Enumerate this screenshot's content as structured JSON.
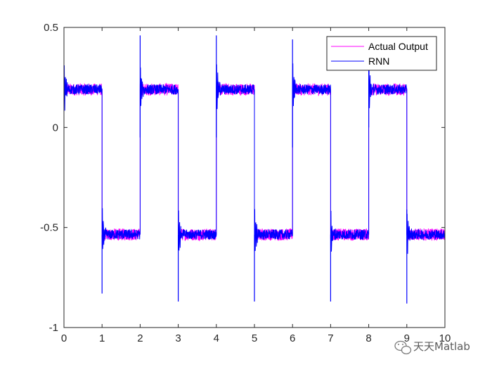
{
  "chart_data": {
    "type": "line",
    "title": "",
    "xlabel": "",
    "ylabel": "",
    "xlim": [
      0,
      10
    ],
    "ylim": [
      -1,
      0.5
    ],
    "x_ticks": [
      "0",
      "1",
      "2",
      "3",
      "4",
      "5",
      "6",
      "7",
      "8",
      "9",
      "10"
    ],
    "y_ticks": [
      "-1",
      "-0.5",
      "0",
      "0.5"
    ],
    "grid": false,
    "legend_position": "top-right",
    "square_wave": {
      "period": 2,
      "high_level": 0.19,
      "low_level": -0.535,
      "noise_amplitude_actual": 0.03,
      "noise_amplitude_rnn": 0.025
    },
    "series": [
      {
        "name": "Actual Output",
        "color": "#ff00ff",
        "x": [
          0,
          1,
          1,
          2,
          2,
          3,
          3,
          4,
          4,
          5,
          5,
          6,
          6,
          7,
          7,
          8,
          8,
          9,
          9,
          10
        ],
        "y": [
          0.19,
          0.19,
          -0.535,
          -0.535,
          0.19,
          0.19,
          -0.535,
          -0.535,
          0.19,
          0.19,
          -0.535,
          -0.535,
          0.19,
          0.19,
          -0.535,
          -0.535,
          0.19,
          0.19,
          -0.535,
          -0.535
        ]
      },
      {
        "name": "RNN",
        "color": "#0000ff",
        "x": [
          0,
          1,
          1,
          2,
          2,
          3,
          3,
          4,
          4,
          5,
          5,
          6,
          6,
          7,
          7,
          8,
          8,
          9,
          9,
          10
        ],
        "y": [
          0.19,
          0.19,
          -0.535,
          -0.535,
          0.19,
          0.19,
          -0.535,
          -0.535,
          0.19,
          0.19,
          -0.535,
          -0.535,
          0.19,
          0.19,
          -0.535,
          -0.535,
          0.19,
          0.19,
          -0.535,
          -0.535
        ],
        "spikes": [
          {
            "x": 0.0,
            "y": 0.28
          },
          {
            "x": 1.0,
            "y": -0.83
          },
          {
            "x": 2.0,
            "y": 0.46
          },
          {
            "x": 2.0,
            "y": -0.05
          },
          {
            "x": 3.0,
            "y": -0.87
          },
          {
            "x": 4.0,
            "y": 0.46
          },
          {
            "x": 4.0,
            "y": -0.05
          },
          {
            "x": 5.0,
            "y": -0.87
          },
          {
            "x": 6.0,
            "y": 0.44
          },
          {
            "x": 6.0,
            "y": -0.1
          },
          {
            "x": 7.0,
            "y": -0.87
          },
          {
            "x": 8.0,
            "y": 0.3
          },
          {
            "x": 8.0,
            "y": 0.0
          },
          {
            "x": 9.0,
            "y": -0.88
          },
          {
            "x": 9.0,
            "y": -0.41
          }
        ]
      }
    ]
  },
  "watermark": {
    "text": "天天Matlab",
    "icon": "wechat-icon"
  }
}
